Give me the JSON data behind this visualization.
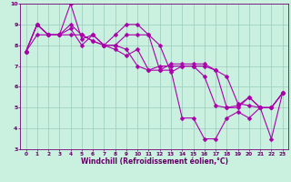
{
  "xlabel": "Windchill (Refroidissement éolien,°C)",
  "bg_color": "#caf0e0",
  "grid_color": "#99ccbb",
  "line_color": "#aa00aa",
  "xlim": [
    -0.5,
    23.5
  ],
  "ylim": [
    3,
    10
  ],
  "xticks": [
    0,
    1,
    2,
    3,
    4,
    5,
    6,
    7,
    8,
    9,
    10,
    11,
    12,
    13,
    14,
    15,
    16,
    17,
    18,
    19,
    20,
    21,
    22,
    23
  ],
  "yticks": [
    3,
    4,
    5,
    6,
    7,
    8,
    9,
    10
  ],
  "series": [
    [
      7.7,
      8.5,
      8.5,
      8.5,
      8.5,
      8.5,
      8.2,
      8.0,
      8.0,
      7.8,
      7.0,
      6.8,
      7.0,
      7.0,
      7.0,
      7.0,
      7.0,
      6.8,
      6.5,
      5.2,
      5.1,
      5.0,
      5.0,
      5.7
    ],
    [
      7.7,
      9.0,
      8.5,
      8.5,
      9.0,
      8.5,
      8.2,
      8.0,
      8.5,
      9.0,
      9.0,
      8.5,
      8.0,
      6.7,
      7.0,
      7.0,
      6.5,
      5.1,
      5.0,
      5.1,
      5.5,
      5.0,
      5.0,
      5.7
    ],
    [
      7.7,
      9.0,
      8.5,
      8.5,
      10.0,
      8.3,
      8.5,
      8.0,
      7.8,
      7.5,
      7.8,
      6.8,
      6.8,
      6.8,
      4.5,
      4.5,
      3.5,
      3.5,
      4.5,
      4.8,
      4.5,
      5.0,
      3.5,
      5.7
    ],
    [
      7.7,
      9.0,
      8.5,
      8.5,
      8.8,
      8.0,
      8.5,
      8.0,
      8.0,
      8.5,
      8.5,
      8.5,
      6.8,
      7.1,
      7.1,
      7.1,
      7.1,
      6.8,
      5.0,
      5.0,
      5.5,
      5.0,
      5.0,
      5.7
    ]
  ],
  "markersize": 2.5,
  "linewidth": 0.8,
  "tick_fontsize": 4.2,
  "xlabel_fontsize": 5.5
}
